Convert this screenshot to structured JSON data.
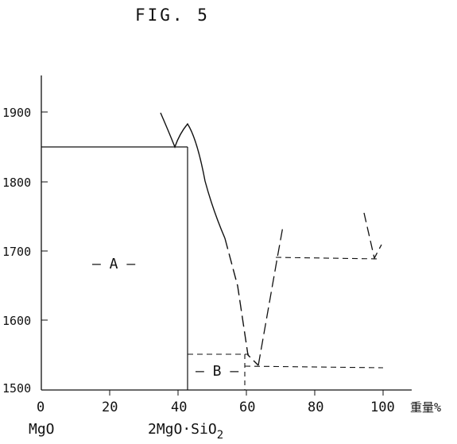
{
  "figure": {
    "title": "FIG. 5"
  },
  "axes": {
    "y_ticks": [
      "1500",
      "1600",
      "1700",
      "1800",
      "1900"
    ],
    "x_ticks": [
      "0",
      "20",
      "40",
      "60",
      "80",
      "100"
    ],
    "x_unit": "重量%",
    "x_left_component": "MgO",
    "x_compound_base": "2MgO·SiO",
    "x_compound_subscript": "2"
  },
  "regions": {
    "a_label": "– A –",
    "b_label": "– B –"
  },
  "chart_data": {
    "type": "line",
    "title": "FIG. 5",
    "xlabel": "重量%",
    "ylabel": "",
    "xlim": [
      0,
      100
    ],
    "ylim": [
      1500,
      1950
    ],
    "grid": false,
    "regions": [
      {
        "name": "A",
        "x_range": [
          0,
          43
        ],
        "y_range": [
          1500,
          1850
        ]
      },
      {
        "name": "B",
        "x_range": [
          43,
          60
        ],
        "y_range": [
          1500,
          1550
        ]
      }
    ],
    "series": [
      {
        "style": "solid",
        "points": [
          [
            0,
            1850
          ],
          [
            40,
            1850
          ]
        ]
      },
      {
        "style": "solid",
        "points": [
          [
            35,
            1890
          ],
          [
            38.5,
            1850
          ],
          [
            40,
            1870
          ],
          [
            43,
            1880
          ],
          [
            45,
            1845
          ],
          [
            50,
            1760
          ],
          [
            54,
            1680
          ]
        ]
      },
      {
        "style": "dashed",
        "points": [
          [
            54,
            1680
          ],
          [
            57,
            1620
          ],
          [
            61,
            1550
          ],
          [
            64,
            1535
          ]
        ]
      },
      {
        "style": "dashed",
        "points": [
          [
            43,
            1550
          ],
          [
            61,
            1550
          ]
        ]
      },
      {
        "style": "dashed",
        "points": [
          [
            64,
            1535
          ],
          [
            69,
            1690
          ],
          [
            71,
            1735
          ]
        ]
      },
      {
        "style": "dashed",
        "points": [
          [
            60,
            1535
          ],
          [
            100,
            1530
          ]
        ]
      },
      {
        "style": "dashed",
        "points": [
          [
            69,
            1688
          ],
          [
            100,
            1686
          ]
        ]
      },
      {
        "style": "dashed",
        "points": [
          [
            95,
            1755
          ],
          [
            98,
            1686
          ],
          [
            100,
            1708
          ]
        ]
      },
      {
        "style": "solid",
        "points": [
          [
            43,
            1500
          ],
          [
            43,
            1850
          ]
        ]
      },
      {
        "style": "dashed",
        "points": [
          [
            60,
            1500
          ],
          [
            60,
            1550
          ]
        ]
      }
    ]
  }
}
